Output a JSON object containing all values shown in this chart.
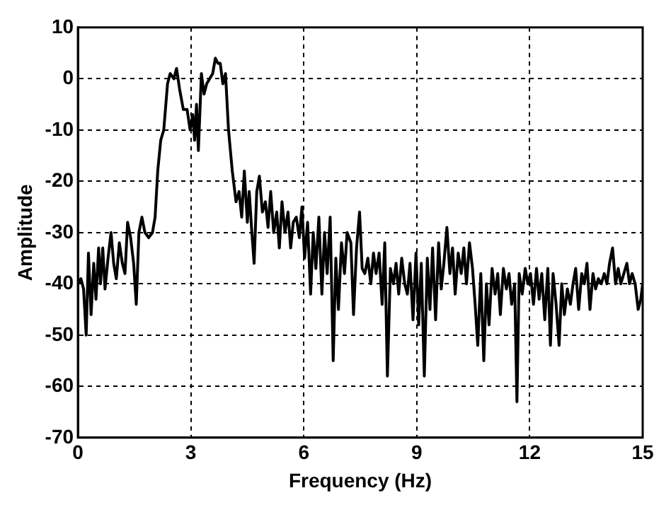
{
  "chart_data": {
    "type": "line",
    "xlabel": "Frequency (Hz)",
    "ylabel": "Amplitude",
    "xlim": [
      0,
      15
    ],
    "xticks": [
      0,
      3,
      6,
      9,
      12,
      15
    ],
    "ylim": [
      -70,
      10
    ],
    "yticks": [
      -70,
      -60,
      -50,
      -40,
      -30,
      -20,
      -10,
      0,
      10
    ],
    "grid": true,
    "line_style": "solid",
    "marker": "none",
    "series": [
      {
        "color": "#000000",
        "x": [
          0,
          0.08,
          0.15,
          0.22,
          0.28,
          0.35,
          0.42,
          0.48,
          0.55,
          0.6,
          0.66,
          0.72,
          0.8,
          0.88,
          0.95,
          1.02,
          1.1,
          1.18,
          1.25,
          1.32,
          1.4,
          1.48,
          1.55,
          1.62,
          1.7,
          1.78,
          1.88,
          1.98,
          2.05,
          2.12,
          2.2,
          2.28,
          2.38,
          2.45,
          2.55,
          2.62,
          2.7,
          2.8,
          2.9,
          2.98,
          3.05,
          3.1,
          3.15,
          3.2,
          3.28,
          3.35,
          3.42,
          3.5,
          3.58,
          3.65,
          3.72,
          3.78,
          3.85,
          3.92,
          4.0,
          4.1,
          4.2,
          4.28,
          4.35,
          4.42,
          4.5,
          4.55,
          4.62,
          4.68,
          4.75,
          4.82,
          4.9,
          4.98,
          5.05,
          5.12,
          5.2,
          5.28,
          5.35,
          5.42,
          5.5,
          5.58,
          5.65,
          5.72,
          5.8,
          5.88,
          5.95,
          6.02,
          6.1,
          6.18,
          6.25,
          6.32,
          6.4,
          6.48,
          6.55,
          6.62,
          6.7,
          6.78,
          6.85,
          6.92,
          7.0,
          7.08,
          7.15,
          7.25,
          7.32,
          7.4,
          7.48,
          7.55,
          7.62,
          7.7,
          7.78,
          7.85,
          7.92,
          8.0,
          8.08,
          8.15,
          8.22,
          8.3,
          8.38,
          8.45,
          8.52,
          8.6,
          8.68,
          8.75,
          8.82,
          8.9,
          8.98,
          9.05,
          9.12,
          9.2,
          9.28,
          9.35,
          9.42,
          9.5,
          9.58,
          9.65,
          9.72,
          9.8,
          9.88,
          9.95,
          10.02,
          10.1,
          10.18,
          10.25,
          10.32,
          10.4,
          10.48,
          10.55,
          10.62,
          10.7,
          10.78,
          10.85,
          10.92,
          11.0,
          11.08,
          11.15,
          11.22,
          11.3,
          11.38,
          11.45,
          11.52,
          11.6,
          11.66,
          11.72,
          11.8,
          11.88,
          11.95,
          12.02,
          12.1,
          12.18,
          12.25,
          12.32,
          12.4,
          12.48,
          12.55,
          12.62,
          12.7,
          12.78,
          12.85,
          12.92,
          13.0,
          13.08,
          13.15,
          13.22,
          13.3,
          13.38,
          13.45,
          13.52,
          13.6,
          13.68,
          13.75,
          13.82,
          13.9,
          13.98,
          14.05,
          14.12,
          14.2,
          14.28,
          14.35,
          14.42,
          14.5,
          14.58,
          14.65,
          14.72,
          14.8,
          14.88,
          14.95,
          15.0
        ],
        "values": [
          -40,
          -39,
          -41,
          -50,
          -34,
          -46,
          -36,
          -43,
          -33,
          -40,
          -33,
          -41,
          -35,
          -30,
          -36,
          -39,
          -32,
          -36,
          -38,
          -28,
          -31,
          -36,
          -44,
          -30,
          -27,
          -30,
          -31,
          -30,
          -27,
          -18,
          -12,
          -10,
          -1,
          1,
          0,
          2,
          -2,
          -6,
          -6,
          -10,
          -7,
          -12,
          -5,
          -14,
          1,
          -3,
          -1,
          0,
          1,
          4,
          3,
          3,
          -1,
          1,
          -10,
          -18,
          -24,
          -22,
          -27,
          -18,
          -28,
          -22,
          -30,
          -36,
          -22,
          -19,
          -26,
          -24,
          -29,
          -22,
          -30,
          -26,
          -33,
          -24,
          -30,
          -26,
          -33,
          -28,
          -27,
          -31,
          -25,
          -35,
          -28,
          -42,
          -30,
          -37,
          -27,
          -42,
          -30,
          -38,
          -27,
          -55,
          -35,
          -45,
          -32,
          -38,
          -30,
          -32,
          -46,
          -33,
          -26,
          -37,
          -38,
          -35,
          -40,
          -34,
          -38,
          -34,
          -44,
          -32,
          -58,
          -37,
          -40,
          -36,
          -42,
          -35,
          -40,
          -42,
          -36,
          -47,
          -34,
          -48,
          -36,
          -58,
          -35,
          -45,
          -33,
          -47,
          -32,
          -41,
          -36,
          -29,
          -38,
          -33,
          -42,
          -34,
          -38,
          -33,
          -40,
          -32,
          -37,
          -44,
          -52,
          -38,
          -55,
          -40,
          -48,
          -37,
          -42,
          -38,
          -46,
          -37,
          -41,
          -38,
          -44,
          -40,
          -63,
          -38,
          -42,
          -37,
          -40,
          -38,
          -44,
          -37,
          -43,
          -38,
          -47,
          -37,
          -52,
          -38,
          -44,
          -52,
          -40,
          -46,
          -41,
          -44,
          -40,
          -37,
          -45,
          -38,
          -40,
          -36,
          -45,
          -38,
          -41,
          -39,
          -40,
          -38,
          -40,
          -36,
          -33,
          -40,
          -37,
          -40,
          -38,
          -36,
          -40,
          -38,
          -40,
          -45,
          -43,
          -40
        ]
      }
    ]
  }
}
